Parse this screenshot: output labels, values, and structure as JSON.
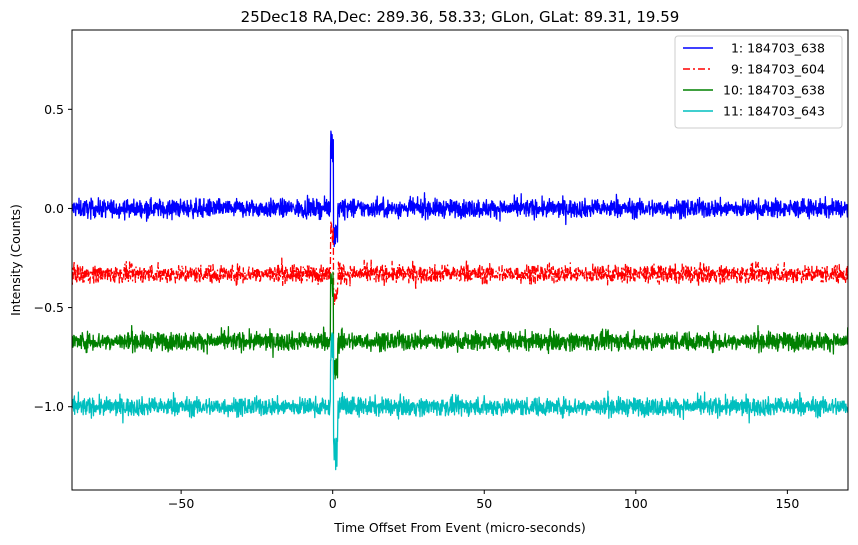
{
  "chart_data": {
    "type": "line",
    "title": "25Dec18 RA,Dec:  289.36,  58.33; GLon, GLat:   89.31,  19.59",
    "xlabel": "Time Offset From Event (micro-seconds)",
    "ylabel": "Intensity (Counts)",
    "xlim": [
      -86,
      170
    ],
    "ylim": [
      -1.42,
      0.9
    ],
    "xticks": [
      -50,
      0,
      50,
      100,
      150
    ],
    "xtick_labels": [
      "−50",
      "0",
      "50",
      "100",
      "150"
    ],
    "yticks": [
      -1.0,
      -0.5,
      0.0,
      0.5
    ],
    "ytick_labels": [
      "−1.0",
      "−0.5",
      "0.0",
      "0.5"
    ],
    "legend_position": "top-right",
    "series": [
      {
        "name": "1: 184703_638",
        "label": "  1: 184703_638",
        "color": "#0000ff",
        "dash": "solid",
        "offset": 0.0,
        "noise": 0.035,
        "spike_max": 0.4,
        "spike_min": -0.2
      },
      {
        "name": "9: 184703_604",
        "label": "  9: 184703_604",
        "color": "#ff0000",
        "dash": "dashdot",
        "offset": -0.33,
        "noise": 0.035,
        "spike_max": -0.06,
        "spike_min": -0.5
      },
      {
        "name": "10: 184703_638",
        "label": "10: 184703_638",
        "color": "#008000",
        "dash": "solid",
        "offset": -0.67,
        "noise": 0.035,
        "spike_max": -0.32,
        "spike_min": -0.87
      },
      {
        "name": "11: 184703_643",
        "label": "11: 184703_643",
        "color": "#00bfbf",
        "dash": "solid",
        "offset": -1.0,
        "noise": 0.035,
        "spike_max": -0.62,
        "spike_min": -1.33
      }
    ]
  }
}
